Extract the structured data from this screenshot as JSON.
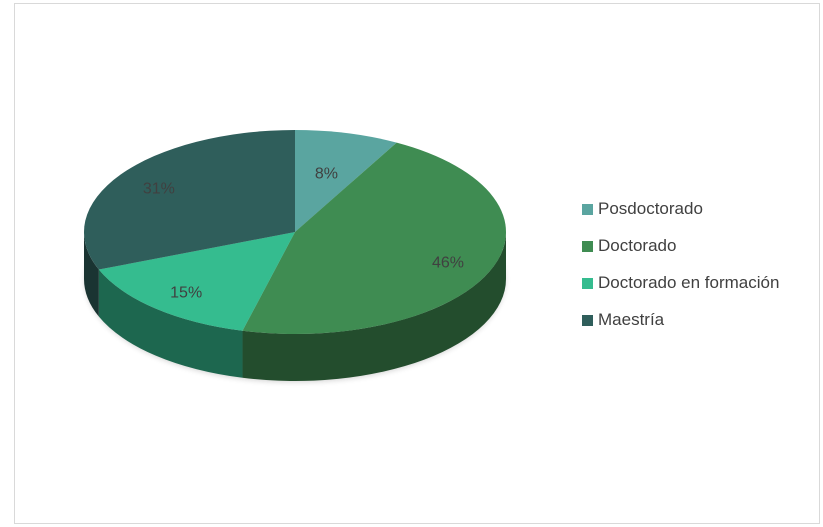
{
  "chart_data": {
    "type": "pie",
    "three_d": true,
    "title": "",
    "categories": [
      "Posdoctorado",
      "Doctorado",
      "Doctorado en formación",
      "Maestría"
    ],
    "values": [
      8,
      46,
      15,
      31
    ],
    "data_labels": [
      "8%",
      "46%",
      "15%",
      "31%"
    ],
    "colors": [
      "#5aa5a0",
      "#3f8c52",
      "#35bc8f",
      "#2f5e5b"
    ],
    "legend_position": "right"
  }
}
